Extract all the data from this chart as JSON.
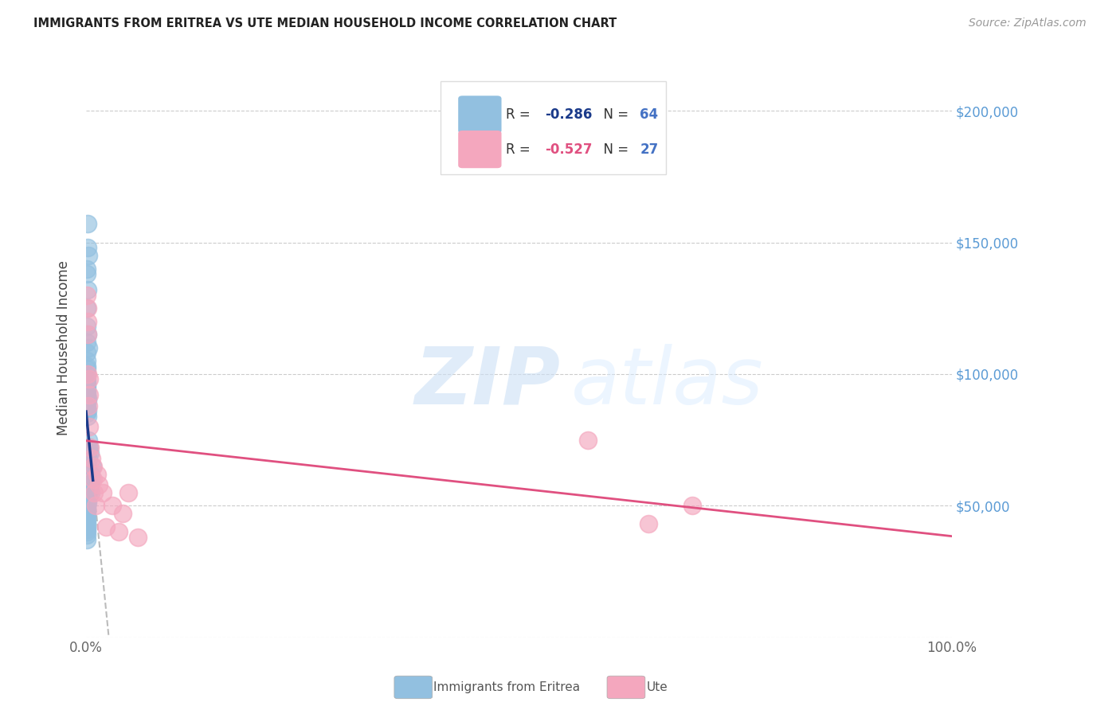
{
  "title": "IMMIGRANTS FROM ERITREA VS UTE MEDIAN HOUSEHOLD INCOME CORRELATION CHART",
  "source": "Source: ZipAtlas.com",
  "ylabel": "Median Household Income",
  "xlim": [
    0.0,
    1.0
  ],
  "ylim": [
    0,
    220000
  ],
  "blue_color": "#92c0e0",
  "pink_color": "#f4a7be",
  "blue_line_color": "#1a3a8a",
  "pink_line_color": "#e05080",
  "right_label_color": "#5b9bd5",
  "legend_N_color": "#4472c4",
  "blue_R": "-0.286",
  "blue_N": "64",
  "pink_R": "-0.527",
  "pink_N": "27",
  "watermark_zip": "ZIP",
  "watermark_atlas": "atlas",
  "blue_scatter_x": [
    0.0018,
    0.0022,
    0.003,
    0.001,
    0.001,
    0.0015,
    0.0008,
    0.0008,
    0.0008,
    0.0007,
    0.0007,
    0.0007,
    0.001,
    0.001,
    0.002,
    0.0005,
    0.0005,
    0.0005,
    0.0005,
    0.0005,
    0.0012,
    0.0012,
    0.0018,
    0.0018,
    0.0025,
    0.0012,
    0.0012,
    0.0018,
    0.0012,
    0.0018,
    0.003,
    0.004,
    0.005,
    0.007,
    0.0055,
    0.006,
    0.0045,
    0.0035,
    0.0042,
    0.0025,
    0.0015,
    0.0015,
    0.0015,
    0.0015,
    0.0008,
    0.0008,
    0.0008,
    0.0008,
    0.0008,
    0.0008,
    0.0008,
    0.0008,
    0.0008,
    0.0008,
    0.0008,
    0.0008,
    0.0008,
    0.0015,
    0.0025,
    0.0032,
    0.0022,
    0.0032,
    0.0042,
    0.0052
  ],
  "blue_scatter_y": [
    157000,
    148000,
    145000,
    140000,
    138000,
    132000,
    125000,
    118000,
    112000,
    108000,
    105000,
    103000,
    102000,
    100000,
    115000,
    98000,
    97000,
    96000,
    95000,
    94000,
    93000,
    92000,
    91000,
    90000,
    110000,
    88000,
    87000,
    86000,
    85000,
    84000,
    75000,
    72000,
    70000,
    65000,
    62000,
    60000,
    58000,
    57000,
    56000,
    55000,
    54000,
    53000,
    52000,
    51000,
    50000,
    49000,
    48000,
    47000,
    46000,
    45000,
    44000,
    43000,
    42000,
    41000,
    40000,
    39000,
    37000,
    70000,
    68000,
    72000,
    65000,
    60000,
    58000,
    55000
  ],
  "pink_scatter_x": [
    0.0008,
    0.0015,
    0.0022,
    0.0015,
    0.0022,
    0.0038,
    0.0038,
    0.003,
    0.0038,
    0.0045,
    0.006,
    0.008,
    0.008,
    0.009,
    0.011,
    0.013,
    0.015,
    0.019,
    0.023,
    0.03,
    0.038,
    0.042,
    0.049,
    0.06,
    0.58,
    0.65,
    0.7
  ],
  "pink_scatter_y": [
    130000,
    125000,
    120000,
    115000,
    100000,
    98000,
    92000,
    88000,
    80000,
    72000,
    68000,
    65000,
    60000,
    55000,
    50000,
    62000,
    58000,
    55000,
    42000,
    50000,
    40000,
    47000,
    55000,
    38000,
    75000,
    43000,
    50000
  ],
  "ytick_positions": [
    0,
    50000,
    100000,
    150000,
    200000
  ],
  "ytick_labels_right": [
    "",
    "$50,000",
    "$100,000",
    "$150,000",
    "$200,000"
  ]
}
